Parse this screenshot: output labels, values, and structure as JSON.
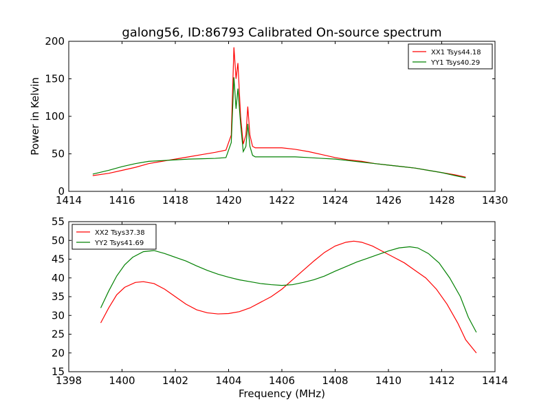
{
  "figure": {
    "title": "galong56, ID:86793 Calibrated On-source spectrum",
    "background": "#ffffff"
  },
  "chart_data": [
    {
      "type": "line",
      "title": "galong56, ID:86793 Calibrated On-source spectrum",
      "xlabel": "",
      "ylabel": "Power in Kelvin",
      "xlim": [
        1414,
        1430
      ],
      "ylim": [
        0,
        200
      ],
      "xticks": [
        "1414",
        "1416",
        "1418",
        "1420",
        "1422",
        "1424",
        "1426",
        "1428",
        "1430"
      ],
      "yticks": [
        "0",
        "50",
        "100",
        "150",
        "200"
      ],
      "grid": false,
      "legend_position": "top-right",
      "series": [
        {
          "name": "XX1 Tsys44.18",
          "color": "#ff0000",
          "points": [
            [
              1414.9,
              21
            ],
            [
              1415.5,
              24
            ],
            [
              1416,
              28
            ],
            [
              1416.5,
              32
            ],
            [
              1417,
              37
            ],
            [
              1417.5,
              40
            ],
            [
              1418,
              43
            ],
            [
              1418.5,
              46
            ],
            [
              1419,
              49
            ],
            [
              1419.5,
              52
            ],
            [
              1419.9,
              55
            ],
            [
              1420.1,
              75
            ],
            [
              1420.2,
              192
            ],
            [
              1420.28,
              150
            ],
            [
              1420.35,
              171
            ],
            [
              1420.45,
              100
            ],
            [
              1420.55,
              63
            ],
            [
              1420.65,
              75
            ],
            [
              1420.72,
              113
            ],
            [
              1420.8,
              75
            ],
            [
              1420.9,
              60
            ],
            [
              1421.0,
              58
            ],
            [
              1421.5,
              58
            ],
            [
              1422,
              58
            ],
            [
              1422.5,
              56
            ],
            [
              1423,
              53
            ],
            [
              1423.5,
              49
            ],
            [
              1424,
              45
            ],
            [
              1424.5,
              42
            ],
            [
              1425,
              40
            ],
            [
              1425.5,
              37
            ],
            [
              1426,
              35
            ],
            [
              1426.5,
              33
            ],
            [
              1427,
              31
            ],
            [
              1427.5,
              28
            ],
            [
              1428,
              25
            ],
            [
              1428.5,
              22
            ],
            [
              1428.9,
              19
            ]
          ]
        },
        {
          "name": "YY1 Tsys40.29",
          "color": "#008000",
          "points": [
            [
              1414.9,
              23
            ],
            [
              1415.5,
              28
            ],
            [
              1416,
              33
            ],
            [
              1416.5,
              37
            ],
            [
              1417,
              40
            ],
            [
              1417.5,
              41
            ],
            [
              1418,
              42
            ],
            [
              1418.5,
              43
            ],
            [
              1419,
              43.5
            ],
            [
              1419.5,
              44
            ],
            [
              1419.9,
              45
            ],
            [
              1420.1,
              65
            ],
            [
              1420.2,
              152
            ],
            [
              1420.28,
              110
            ],
            [
              1420.35,
              137
            ],
            [
              1420.45,
              90
            ],
            [
              1420.55,
              53
            ],
            [
              1420.65,
              60
            ],
            [
              1420.72,
              90
            ],
            [
              1420.8,
              60
            ],
            [
              1420.9,
              48
            ],
            [
              1421.0,
              46
            ],
            [
              1421.5,
              46
            ],
            [
              1422,
              46
            ],
            [
              1422.5,
              46
            ],
            [
              1423,
              45
            ],
            [
              1423.5,
              44
            ],
            [
              1424,
              43
            ],
            [
              1424.5,
              41
            ],
            [
              1425,
              39
            ],
            [
              1425.5,
              37
            ],
            [
              1426,
              35
            ],
            [
              1426.5,
              33
            ],
            [
              1427,
              31
            ],
            [
              1427.5,
              28
            ],
            [
              1428,
              25
            ],
            [
              1428.5,
              21
            ],
            [
              1428.9,
              18
            ]
          ]
        }
      ]
    },
    {
      "type": "line",
      "title": "",
      "xlabel": "Frequency (MHz)",
      "ylabel": "",
      "xlim": [
        1398,
        1414
      ],
      "ylim": [
        15,
        55
      ],
      "xticks": [
        "1398",
        "1400",
        "1402",
        "1404",
        "1406",
        "1408",
        "1410",
        "1412",
        "1414"
      ],
      "yticks": [
        "15",
        "20",
        "25",
        "30",
        "35",
        "40",
        "45",
        "50",
        "55"
      ],
      "grid": false,
      "legend_position": "top-left",
      "series": [
        {
          "name": "XX2 Tsys37.38",
          "color": "#ff0000",
          "points": [
            [
              1399.2,
              28
            ],
            [
              1399.5,
              32
            ],
            [
              1399.8,
              35.5
            ],
            [
              1400.1,
              37.5
            ],
            [
              1400.5,
              38.8
            ],
            [
              1400.8,
              39
            ],
            [
              1401.2,
              38.5
            ],
            [
              1401.6,
              37
            ],
            [
              1402,
              35
            ],
            [
              1402.4,
              33
            ],
            [
              1402.8,
              31.5
            ],
            [
              1403.2,
              30.7
            ],
            [
              1403.6,
              30.4
            ],
            [
              1404,
              30.5
            ],
            [
              1404.4,
              31
            ],
            [
              1404.8,
              32
            ],
            [
              1405.2,
              33.5
            ],
            [
              1405.6,
              35
            ],
            [
              1406,
              37
            ],
            [
              1406.4,
              39.5
            ],
            [
              1406.8,
              42
            ],
            [
              1407.2,
              44.5
            ],
            [
              1407.6,
              46.8
            ],
            [
              1408,
              48.5
            ],
            [
              1408.4,
              49.5
            ],
            [
              1408.7,
              49.8
            ],
            [
              1409.0,
              49.5
            ],
            [
              1409.4,
              48.5
            ],
            [
              1409.8,
              47
            ],
            [
              1410.2,
              45.5
            ],
            [
              1410.6,
              44
            ],
            [
              1411,
              42
            ],
            [
              1411.4,
              40
            ],
            [
              1411.8,
              37
            ],
            [
              1412.2,
              33
            ],
            [
              1412.6,
              28
            ],
            [
              1412.9,
              23.5
            ],
            [
              1413.3,
              20
            ]
          ]
        },
        {
          "name": "YY2 Tsys41.69",
          "color": "#008000",
          "points": [
            [
              1399.2,
              32
            ],
            [
              1399.5,
              36.5
            ],
            [
              1399.8,
              40.5
            ],
            [
              1400.1,
              43.5
            ],
            [
              1400.4,
              45.5
            ],
            [
              1400.8,
              47
            ],
            [
              1401.2,
              47.3
            ],
            [
              1401.6,
              46.5
            ],
            [
              1402,
              45.5
            ],
            [
              1402.4,
              44.5
            ],
            [
              1402.8,
              43.2
            ],
            [
              1403.2,
              42
            ],
            [
              1403.6,
              41
            ],
            [
              1404,
              40.2
            ],
            [
              1404.4,
              39.5
            ],
            [
              1404.8,
              39
            ],
            [
              1405.2,
              38.5
            ],
            [
              1405.6,
              38.2
            ],
            [
              1406,
              38
            ],
            [
              1406.4,
              38.2
            ],
            [
              1406.8,
              38.8
            ],
            [
              1407.2,
              39.5
            ],
            [
              1407.6,
              40.5
            ],
            [
              1408,
              41.8
            ],
            [
              1408.4,
              43
            ],
            [
              1408.8,
              44.2
            ],
            [
              1409.2,
              45.2
            ],
            [
              1409.6,
              46.2
            ],
            [
              1410,
              47.2
            ],
            [
              1410.4,
              48
            ],
            [
              1410.8,
              48.3
            ],
            [
              1411.1,
              48
            ],
            [
              1411.5,
              46.5
            ],
            [
              1411.9,
              44
            ],
            [
              1412.3,
              40
            ],
            [
              1412.7,
              35
            ],
            [
              1413.0,
              29.5
            ],
            [
              1413.3,
              25.5
            ]
          ]
        }
      ]
    }
  ]
}
